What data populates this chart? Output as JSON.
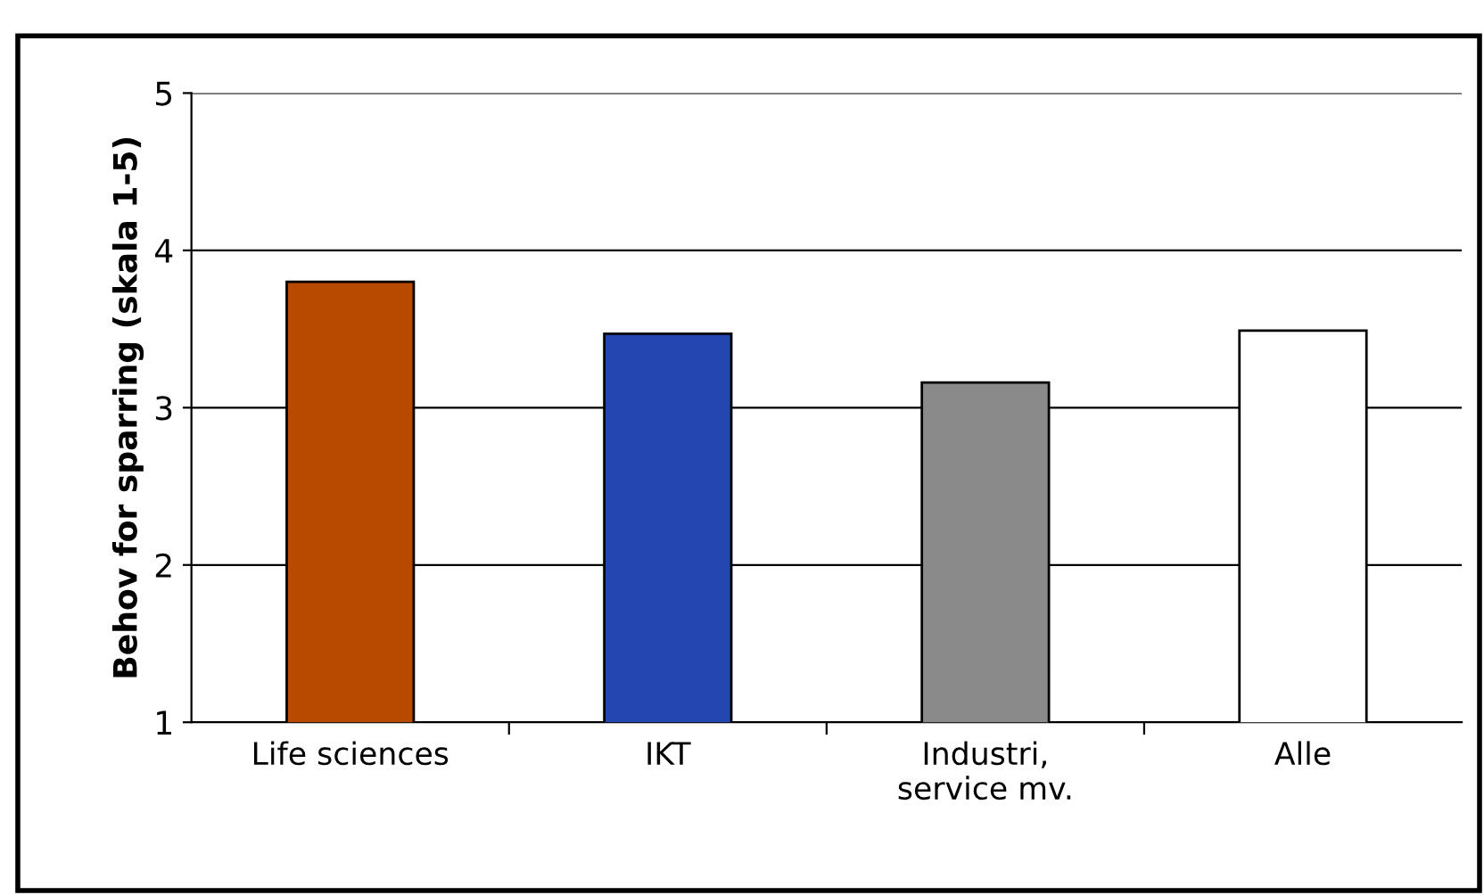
{
  "chart_data": {
    "type": "bar",
    "ylabel": "Behov for sparring (skala 1-5)",
    "categories": [
      "Life sciences",
      "IKT",
      "Industri,\nservice mv.",
      "Alle"
    ],
    "values": [
      3.8,
      3.47,
      3.16,
      3.49
    ],
    "colors": [
      "#b84a00",
      "#2446b0",
      "#8a8a8a",
      "#ffffff"
    ],
    "ylim": [
      1,
      5
    ],
    "yticks": [
      1,
      2,
      3,
      4,
      5
    ],
    "grid": "y",
    "legend": false
  }
}
